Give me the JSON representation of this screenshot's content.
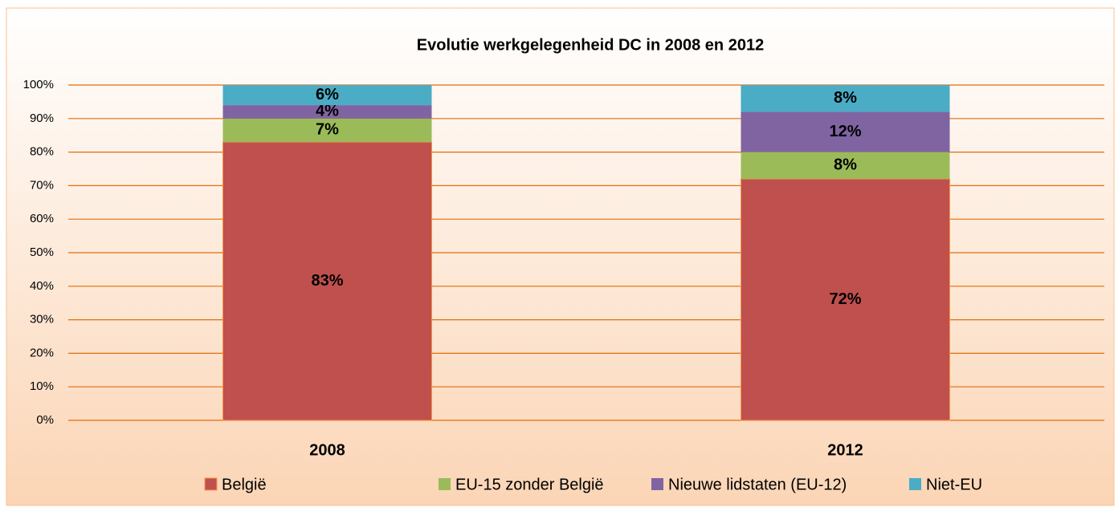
{
  "chart_data": {
    "type": "stacked_bar",
    "title": "Evolutie werkgelegenheid DC in 2008 en 2012",
    "categories": [
      "2008",
      "2012"
    ],
    "series": [
      {
        "name": "België",
        "color": "#c0504d",
        "values": [
          83,
          72
        ],
        "value_labels": [
          "83%",
          "72%"
        ]
      },
      {
        "name": "EU-15 zonder België",
        "color": "#9bbb59",
        "values": [
          7,
          8
        ],
        "value_labels": [
          "7%",
          "8%"
        ]
      },
      {
        "name": "Nieuwe lidstaten (EU-12)",
        "color": "#8064a2",
        "values": [
          4,
          12
        ],
        "value_labels": [
          "4%",
          "12%"
        ]
      },
      {
        "name": "Niet-EU",
        "color": "#4bacc6",
        "values": [
          6,
          8
        ],
        "value_labels": [
          "6%",
          "8%"
        ]
      }
    ],
    "ylim": [
      0,
      100
    ],
    "yticks": [
      {
        "value": 0,
        "label": "0%"
      },
      {
        "value": 10,
        "label": "10%"
      },
      {
        "value": 20,
        "label": "20%"
      },
      {
        "value": 30,
        "label": "30%"
      },
      {
        "value": 40,
        "label": "40%"
      },
      {
        "value": 50,
        "label": "50%"
      },
      {
        "value": 60,
        "label": "60%"
      },
      {
        "value": 70,
        "label": "70%"
      },
      {
        "value": 80,
        "label": "80%"
      },
      {
        "value": 90,
        "label": "90%"
      },
      {
        "value": 100,
        "label": "100%"
      }
    ],
    "grid": true,
    "legend": "bottom"
  }
}
